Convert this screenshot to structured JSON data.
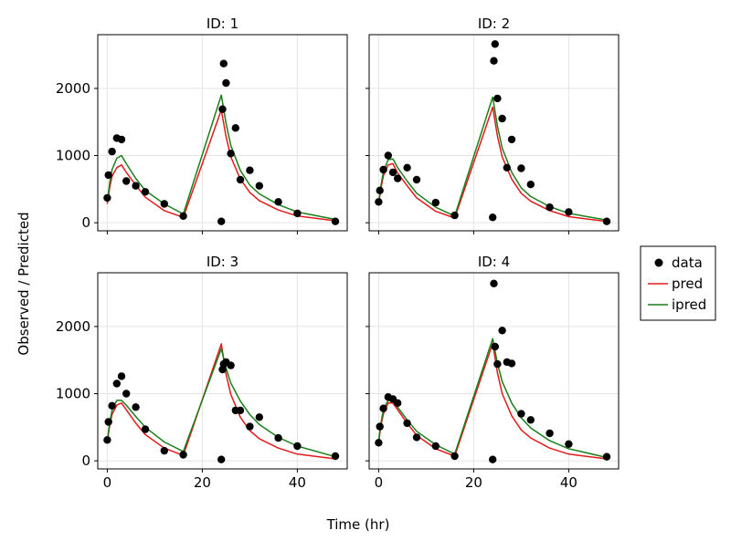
{
  "chart_data": {
    "type": "scatter",
    "xlabel": "Time (hr)",
    "ylabel": "Observed / Predicted",
    "xlim": [
      -2,
      50.5
    ],
    "ylim": [
      -120,
      2800
    ],
    "x_ticks": [
      0,
      20,
      40
    ],
    "y_ticks": [
      0,
      1000,
      2000
    ],
    "x_tick_labels": [
      "0",
      "20",
      "40"
    ],
    "y_tick_labels": [
      "0",
      "1000",
      "2000"
    ],
    "grid": true,
    "legend_position": "right",
    "legend": [
      {
        "key": "data",
        "label": "data",
        "color": "#000000",
        "kind": "point"
      },
      {
        "key": "pred",
        "label": "pred",
        "color": "#e31a1c",
        "kind": "line"
      },
      {
        "key": "ipred",
        "label": "ipred",
        "color": "#1a7f1a",
        "kind": "line"
      }
    ],
    "panels": [
      {
        "title": "ID: 1",
        "data": [
          [
            0,
            370
          ],
          [
            0.25,
            710
          ],
          [
            1,
            1060
          ],
          [
            2,
            1260
          ],
          [
            3,
            1240
          ],
          [
            4,
            620
          ],
          [
            6,
            550
          ],
          [
            8,
            460
          ],
          [
            12,
            280
          ],
          [
            16,
            100
          ],
          [
            24,
            20
          ],
          [
            24.25,
            1690
          ],
          [
            24.5,
            2370
          ],
          [
            25,
            2080
          ],
          [
            26,
            1030
          ],
          [
            27,
            1410
          ],
          [
            28,
            640
          ],
          [
            30,
            780
          ],
          [
            32,
            550
          ],
          [
            36,
            310
          ],
          [
            40,
            140
          ],
          [
            48,
            20
          ]
        ],
        "pred": [
          [
            0,
            280
          ],
          [
            0.5,
            520
          ],
          [
            1,
            690
          ],
          [
            2,
            820
          ],
          [
            3,
            860
          ],
          [
            4,
            750
          ],
          [
            6,
            560
          ],
          [
            8,
            380
          ],
          [
            12,
            180
          ],
          [
            16,
            80
          ],
          [
            24,
            1680
          ],
          [
            25,
            1280
          ],
          [
            26,
            980
          ],
          [
            28,
            650
          ],
          [
            30,
            450
          ],
          [
            32,
            330
          ],
          [
            36,
            190
          ],
          [
            40,
            100
          ],
          [
            48,
            30
          ]
        ],
        "ipred": [
          [
            0,
            310
          ],
          [
            0.5,
            590
          ],
          [
            1,
            790
          ],
          [
            2,
            960
          ],
          [
            3,
            1000
          ],
          [
            4,
            880
          ],
          [
            6,
            660
          ],
          [
            8,
            480
          ],
          [
            12,
            280
          ],
          [
            16,
            130
          ],
          [
            24,
            1900
          ],
          [
            25,
            1480
          ],
          [
            26,
            1150
          ],
          [
            28,
            780
          ],
          [
            30,
            560
          ],
          [
            32,
            430
          ],
          [
            36,
            270
          ],
          [
            40,
            160
          ],
          [
            48,
            50
          ]
        ]
      },
      {
        "title": "ID: 2",
        "data": [
          [
            0,
            310
          ],
          [
            0.25,
            480
          ],
          [
            1,
            790
          ],
          [
            2,
            1000
          ],
          [
            3,
            750
          ],
          [
            4,
            660
          ],
          [
            6,
            820
          ],
          [
            8,
            640
          ],
          [
            12,
            300
          ],
          [
            16,
            110
          ],
          [
            24,
            80
          ],
          [
            24.25,
            2410
          ],
          [
            24.5,
            2660
          ],
          [
            25,
            1850
          ],
          [
            26,
            1550
          ],
          [
            27,
            820
          ],
          [
            28,
            1240
          ],
          [
            30,
            810
          ],
          [
            32,
            570
          ],
          [
            36,
            230
          ],
          [
            40,
            160
          ],
          [
            48,
            20
          ]
        ],
        "pred": [
          [
            0,
            280
          ],
          [
            0.5,
            520
          ],
          [
            1,
            700
          ],
          [
            2,
            860
          ],
          [
            3,
            880
          ],
          [
            4,
            740
          ],
          [
            6,
            550
          ],
          [
            8,
            370
          ],
          [
            12,
            170
          ],
          [
            16,
            70
          ],
          [
            24,
            1720
          ],
          [
            25,
            1290
          ],
          [
            26,
            980
          ],
          [
            28,
            650
          ],
          [
            30,
            440
          ],
          [
            32,
            320
          ],
          [
            36,
            180
          ],
          [
            40,
            90
          ],
          [
            48,
            20
          ]
        ],
        "ipred": [
          [
            0,
            300
          ],
          [
            0.5,
            560
          ],
          [
            1,
            760
          ],
          [
            2,
            940
          ],
          [
            3,
            950
          ],
          [
            4,
            820
          ],
          [
            6,
            620
          ],
          [
            8,
            440
          ],
          [
            12,
            230
          ],
          [
            16,
            100
          ],
          [
            24,
            1870
          ],
          [
            25,
            1440
          ],
          [
            26,
            1110
          ],
          [
            28,
            750
          ],
          [
            30,
            520
          ],
          [
            32,
            390
          ],
          [
            36,
            240
          ],
          [
            40,
            140
          ],
          [
            48,
            40
          ]
        ]
      },
      {
        "title": "ID: 3",
        "data": [
          [
            0,
            310
          ],
          [
            0.25,
            580
          ],
          [
            1,
            820
          ],
          [
            2,
            1150
          ],
          [
            3,
            1260
          ],
          [
            4,
            1000
          ],
          [
            6,
            800
          ],
          [
            8,
            470
          ],
          [
            12,
            150
          ],
          [
            16,
            90
          ],
          [
            24,
            20
          ],
          [
            24.25,
            1360
          ],
          [
            24.5,
            1440
          ],
          [
            25,
            1470
          ],
          [
            26,
            1420
          ],
          [
            27,
            750
          ],
          [
            28,
            750
          ],
          [
            30,
            510
          ],
          [
            32,
            650
          ],
          [
            36,
            340
          ],
          [
            40,
            220
          ],
          [
            48,
            70
          ]
        ],
        "pred": [
          [
            0,
            280
          ],
          [
            0.5,
            520
          ],
          [
            1,
            690
          ],
          [
            2,
            830
          ],
          [
            3,
            860
          ],
          [
            4,
            760
          ],
          [
            6,
            560
          ],
          [
            8,
            390
          ],
          [
            12,
            190
          ],
          [
            16,
            80
          ],
          [
            24,
            1740
          ],
          [
            25,
            1290
          ],
          [
            26,
            990
          ],
          [
            28,
            650
          ],
          [
            30,
            450
          ],
          [
            32,
            330
          ],
          [
            36,
            190
          ],
          [
            40,
            100
          ],
          [
            48,
            30
          ]
        ],
        "ipred": [
          [
            0,
            300
          ],
          [
            0.5,
            560
          ],
          [
            1,
            750
          ],
          [
            2,
            900
          ],
          [
            3,
            900
          ],
          [
            4,
            830
          ],
          [
            6,
            660
          ],
          [
            8,
            500
          ],
          [
            12,
            280
          ],
          [
            16,
            140
          ],
          [
            24,
            1670
          ],
          [
            25,
            1380
          ],
          [
            26,
            1160
          ],
          [
            28,
            890
          ],
          [
            30,
            690
          ],
          [
            32,
            540
          ],
          [
            36,
            350
          ],
          [
            40,
            220
          ],
          [
            48,
            60
          ]
        ]
      },
      {
        "title": "ID: 4",
        "data": [
          [
            0,
            270
          ],
          [
            0.25,
            510
          ],
          [
            1,
            780
          ],
          [
            2,
            950
          ],
          [
            3,
            920
          ],
          [
            4,
            860
          ],
          [
            6,
            560
          ],
          [
            8,
            350
          ],
          [
            12,
            220
          ],
          [
            16,
            70
          ],
          [
            24,
            20
          ],
          [
            24.25,
            2640
          ],
          [
            24.5,
            1700
          ],
          [
            25,
            1440
          ],
          [
            26,
            1940
          ],
          [
            27,
            1470
          ],
          [
            28,
            1450
          ],
          [
            30,
            700
          ],
          [
            32,
            610
          ],
          [
            36,
            410
          ],
          [
            40,
            250
          ],
          [
            48,
            60
          ]
        ],
        "pred": [
          [
            0,
            280
          ],
          [
            0.5,
            530
          ],
          [
            1,
            700
          ],
          [
            2,
            860
          ],
          [
            3,
            860
          ],
          [
            4,
            760
          ],
          [
            6,
            560
          ],
          [
            8,
            380
          ],
          [
            12,
            180
          ],
          [
            16,
            70
          ],
          [
            24,
            1750
          ],
          [
            25,
            1310
          ],
          [
            26,
            1000
          ],
          [
            28,
            670
          ],
          [
            30,
            460
          ],
          [
            32,
            340
          ],
          [
            36,
            190
          ],
          [
            40,
            100
          ],
          [
            48,
            30
          ]
        ],
        "ipred": [
          [
            0,
            300
          ],
          [
            0.5,
            570
          ],
          [
            1,
            760
          ],
          [
            2,
            900
          ],
          [
            3,
            880
          ],
          [
            4,
            800
          ],
          [
            6,
            610
          ],
          [
            8,
            440
          ],
          [
            12,
            240
          ],
          [
            16,
            100
          ],
          [
            24,
            1820
          ],
          [
            25,
            1450
          ],
          [
            26,
            1180
          ],
          [
            28,
            860
          ],
          [
            30,
            640
          ],
          [
            32,
            490
          ],
          [
            36,
            300
          ],
          [
            40,
            180
          ],
          [
            48,
            50
          ]
        ]
      }
    ]
  }
}
